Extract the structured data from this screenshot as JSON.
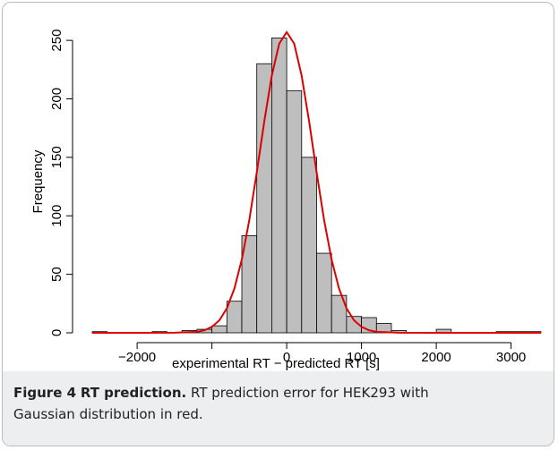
{
  "chart_data": {
    "type": "histogram",
    "xlabel": "experimental RT − predicted RT [s]",
    "ylabel": "Frequency",
    "bins": [
      -2600,
      -2400,
      -2200,
      -2000,
      -1800,
      -1600,
      -1400,
      -1200,
      -1000,
      -800,
      -600,
      -400,
      -200,
      0,
      200,
      400,
      600,
      800,
      1000,
      1200,
      1400,
      1600,
      1800,
      2000,
      2200,
      2400,
      2600,
      2800,
      3000,
      3200,
      3400
    ],
    "values": [
      1,
      0,
      0,
      0,
      1,
      0,
      2,
      3,
      6,
      27,
      83,
      230,
      252,
      207,
      150,
      68,
      32,
      14,
      13,
      8,
      2,
      0,
      0,
      3,
      0,
      0,
      0,
      1,
      1,
      1
    ],
    "color": "#bebebe",
    "curve": {
      "color": "#dd0000",
      "x": [
        -2600,
        -2000,
        -1500,
        -1200,
        -1100,
        -1000,
        -900,
        -800,
        -700,
        -600,
        -500,
        -400,
        -300,
        -200,
        -100,
        0,
        100,
        200,
        300,
        400,
        500,
        600,
        700,
        800,
        900,
        1000,
        1100,
        1200,
        1500,
        2000,
        3400
      ],
      "values": [
        0,
        0,
        0.1,
        0.9,
        2.2,
        5.1,
        10.7,
        20.9,
        37.7,
        62.7,
        96.4,
        137.2,
        180.6,
        219.7,
        247.2,
        257,
        247.2,
        219.7,
        180.6,
        137.2,
        96.4,
        62.7,
        37.7,
        20.9,
        10.7,
        5.1,
        2.2,
        0.9,
        0.1,
        0,
        0
      ]
    },
    "xlim": [
      -2600,
      3400
    ],
    "ylim": [
      0,
      260
    ],
    "xticks": [
      {
        "value": -2000,
        "label": "−2000"
      },
      {
        "value": -1000,
        "label": null
      },
      0,
      1000,
      2000,
      3000
    ],
    "yticks": [
      0,
      50,
      100,
      150,
      200,
      250
    ]
  },
  "caption": {
    "label": "Figure 4",
    "title": "RT prediction.",
    "text": "RT prediction error for HEK293 with Gaussian distribution in red."
  }
}
